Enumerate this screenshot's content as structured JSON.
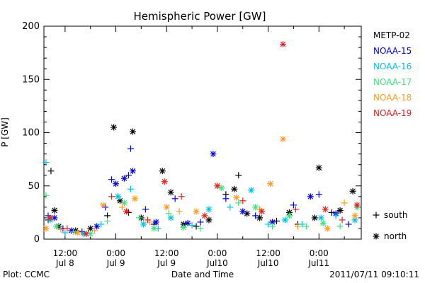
{
  "chart_data": {
    "type": "scatter",
    "title": "Hemispheric Power [GW]",
    "xlabel": "Date and Time",
    "ylabel": "P [GW]",
    "ylim": [
      0,
      200
    ],
    "yticks": [
      0,
      50,
      100,
      150,
      200
    ],
    "xlim": [
      "2011-07-08T07:00",
      "2011-07-11T10:00"
    ],
    "xticks": [
      {
        "t": "2011-07-08T12:00",
        "top": "12:00",
        "bottom": "Jul 8"
      },
      {
        "t": "2011-07-09T00:00",
        "top": "0:00",
        "bottom": "Jul 9"
      },
      {
        "t": "2011-07-09T12:00",
        "top": "12:00",
        "bottom": "Jul 9"
      },
      {
        "t": "2011-07-10T00:00",
        "top": "0:00",
        "bottom": "Jul10"
      },
      {
        "t": "2011-07-10T12:00",
        "top": "12:00",
        "bottom": "Jul10"
      },
      {
        "t": "2011-07-11T00:00",
        "top": "0:00",
        "bottom": "Jul11"
      }
    ],
    "grid": false,
    "legend_position": "right",
    "marker_legend": [
      {
        "symbol": "+",
        "label": "south"
      },
      {
        "symbol": "*",
        "label": "north"
      }
    ],
    "series": [
      {
        "name": "METP-02",
        "color": "#000000",
        "points": [
          {
            "t": "2011-07-08T08:00",
            "y": 18,
            "m": "+"
          },
          {
            "t": "2011-07-08T08:40",
            "y": 64,
            "m": "+"
          },
          {
            "t": "2011-07-08T09:30",
            "y": 27,
            "m": "*"
          },
          {
            "t": "2011-07-08T10:30",
            "y": 12,
            "m": "*"
          },
          {
            "t": "2011-07-08T14:30",
            "y": 8,
            "m": "*"
          },
          {
            "t": "2011-07-08T18:00",
            "y": 10,
            "m": "*"
          },
          {
            "t": "2011-07-08T22:00",
            "y": 22,
            "m": "+"
          },
          {
            "t": "2011-07-08T23:30",
            "y": 105,
            "m": "*"
          },
          {
            "t": "2011-07-09T01:00",
            "y": 36,
            "m": "*"
          },
          {
            "t": "2011-07-09T03:00",
            "y": 25,
            "m": "+"
          },
          {
            "t": "2011-07-09T04:00",
            "y": 101,
            "m": "*"
          },
          {
            "t": "2011-07-09T06:00",
            "y": 20,
            "m": "*"
          },
          {
            "t": "2011-07-09T09:00",
            "y": 14,
            "m": "+"
          },
          {
            "t": "2011-07-09T11:00",
            "y": 64,
            "m": "*"
          },
          {
            "t": "2011-07-09T13:00",
            "y": 44,
            "m": "*"
          },
          {
            "t": "2011-07-09T16:00",
            "y": 14,
            "m": "*"
          },
          {
            "t": "2011-07-09T19:00",
            "y": 12,
            "m": "+"
          },
          {
            "t": "2011-07-09T22:00",
            "y": 18,
            "m": "*"
          },
          {
            "t": "2011-07-10T02:00",
            "y": 42,
            "m": "+"
          },
          {
            "t": "2011-07-10T04:00",
            "y": 47,
            "m": "*"
          },
          {
            "t": "2011-07-10T05:00",
            "y": 60,
            "m": "+"
          },
          {
            "t": "2011-07-10T07:00",
            "y": 24,
            "m": "*"
          },
          {
            "t": "2011-07-10T10:00",
            "y": 20,
            "m": "*"
          },
          {
            "t": "2011-07-10T14:00",
            "y": 17,
            "m": "+"
          },
          {
            "t": "2011-07-10T17:00",
            "y": 25,
            "m": "*"
          },
          {
            "t": "2011-07-10T19:00",
            "y": 14,
            "m": "+"
          },
          {
            "t": "2011-07-10T23:00",
            "y": 20,
            "m": "*"
          },
          {
            "t": "2011-07-11T00:00",
            "y": 67,
            "m": "*"
          },
          {
            "t": "2011-07-11T03:00",
            "y": 25,
            "m": "+"
          },
          {
            "t": "2011-07-11T05:00",
            "y": 27,
            "m": "*"
          },
          {
            "t": "2011-07-11T08:00",
            "y": 45,
            "m": "*"
          }
        ]
      },
      {
        "name": "NOAA-15",
        "color": "#0000e0",
        "points": [
          {
            "t": "2011-07-08T08:00",
            "y": 22,
            "m": "+"
          },
          {
            "t": "2011-07-08T09:30",
            "y": 20,
            "m": "*"
          },
          {
            "t": "2011-07-08T11:30",
            "y": 10,
            "m": "+"
          },
          {
            "t": "2011-07-08T13:30",
            "y": 8,
            "m": "*"
          },
          {
            "t": "2011-07-08T16:00",
            "y": 7,
            "m": "+"
          },
          {
            "t": "2011-07-08T19:30",
            "y": 12,
            "m": "*"
          },
          {
            "t": "2011-07-08T21:30",
            "y": 30,
            "m": "+"
          },
          {
            "t": "2011-07-08T23:00",
            "y": 56,
            "m": "+"
          },
          {
            "t": "2011-07-09T00:00",
            "y": 52,
            "m": "*"
          },
          {
            "t": "2011-07-09T02:00",
            "y": 57,
            "m": "*"
          },
          {
            "t": "2011-07-09T03:00",
            "y": 60,
            "m": "+"
          },
          {
            "t": "2011-07-09T03:30",
            "y": 85,
            "m": "+"
          },
          {
            "t": "2011-07-09T04:00",
            "y": 64,
            "m": "*"
          },
          {
            "t": "2011-07-09T07:00",
            "y": 28,
            "m": "+"
          },
          {
            "t": "2011-07-09T09:30",
            "y": 16,
            "m": "*"
          },
          {
            "t": "2011-07-09T14:00",
            "y": 38,
            "m": "+"
          },
          {
            "t": "2011-07-09T17:00",
            "y": 15,
            "m": "*"
          },
          {
            "t": "2011-07-09T20:00",
            "y": 16,
            "m": "+"
          },
          {
            "t": "2011-07-09T23:00",
            "y": 80,
            "m": "*"
          },
          {
            "t": "2011-07-10T02:00",
            "y": 38,
            "m": "+"
          },
          {
            "t": "2011-07-10T06:00",
            "y": 26,
            "m": "*"
          },
          {
            "t": "2011-07-10T09:00",
            "y": 22,
            "m": "+"
          },
          {
            "t": "2011-07-10T13:00",
            "y": 16,
            "m": "*"
          },
          {
            "t": "2011-07-10T18:00",
            "y": 32,
            "m": "+"
          },
          {
            "t": "2011-07-10T22:00",
            "y": 40,
            "m": "*"
          },
          {
            "t": "2011-07-11T00:00",
            "y": 42,
            "m": "+"
          },
          {
            "t": "2011-07-11T04:00",
            "y": 24,
            "m": "*"
          },
          {
            "t": "2011-07-11T07:00",
            "y": 14,
            "m": "+"
          }
        ]
      },
      {
        "name": "NOAA-16",
        "color": "#00c0e0",
        "points": [
          {
            "t": "2011-07-08T07:30",
            "y": 72,
            "m": "+"
          },
          {
            "t": "2011-07-08T08:30",
            "y": 18,
            "m": "*"
          },
          {
            "t": "2011-07-08T12:00",
            "y": 6,
            "m": "+"
          },
          {
            "t": "2011-07-08T16:30",
            "y": 5,
            "m": "*"
          },
          {
            "t": "2011-07-08T20:30",
            "y": 14,
            "m": "+"
          },
          {
            "t": "2011-07-09T00:30",
            "y": 40,
            "m": "*"
          },
          {
            "t": "2011-07-09T03:30",
            "y": 47,
            "m": "+"
          },
          {
            "t": "2011-07-09T06:30",
            "y": 14,
            "m": "*"
          },
          {
            "t": "2011-07-09T10:00",
            "y": 10,
            "m": "+"
          },
          {
            "t": "2011-07-09T13:00",
            "y": 20,
            "m": "*"
          },
          {
            "t": "2011-07-09T18:00",
            "y": 13,
            "m": "+"
          },
          {
            "t": "2011-07-09T22:00",
            "y": 28,
            "m": "*"
          },
          {
            "t": "2011-07-10T03:00",
            "y": 30,
            "m": "+"
          },
          {
            "t": "2011-07-10T08:00",
            "y": 46,
            "m": "*"
          },
          {
            "t": "2011-07-10T12:00",
            "y": 14,
            "m": "+"
          },
          {
            "t": "2011-07-10T16:00",
            "y": 18,
            "m": "*"
          },
          {
            "t": "2011-07-10T20:00",
            "y": 14,
            "m": "+"
          },
          {
            "t": "2011-07-11T00:30",
            "y": 20,
            "m": "*"
          },
          {
            "t": "2011-07-11T04:00",
            "y": 22,
            "m": "+"
          },
          {
            "t": "2011-07-11T08:30",
            "y": 18,
            "m": "*"
          }
        ]
      },
      {
        "name": "NOAA-17",
        "color": "#40e080",
        "points": [
          {
            "t": "2011-07-08T07:30",
            "y": 41,
            "m": "+"
          },
          {
            "t": "2011-07-08T10:00",
            "y": 12,
            "m": "*"
          },
          {
            "t": "2011-07-08T14:00",
            "y": 7,
            "m": "+"
          },
          {
            "t": "2011-07-08T18:00",
            "y": 5,
            "m": "*"
          },
          {
            "t": "2011-07-08T22:00",
            "y": 17,
            "m": "+"
          },
          {
            "t": "2011-07-09T02:00",
            "y": 34,
            "m": "*"
          },
          {
            "t": "2011-07-09T05:30",
            "y": 20,
            "m": "+"
          },
          {
            "t": "2011-07-09T09:00",
            "y": 10,
            "m": "*"
          },
          {
            "t": "2011-07-09T12:30",
            "y": 24,
            "m": "+"
          },
          {
            "t": "2011-07-09T16:00",
            "y": 11,
            "m": "*"
          },
          {
            "t": "2011-07-09T20:00",
            "y": 10,
            "m": "+"
          },
          {
            "t": "2011-07-10T01:00",
            "y": 48,
            "m": "*"
          },
          {
            "t": "2011-07-10T05:00",
            "y": 34,
            "m": "+"
          },
          {
            "t": "2011-07-10T09:00",
            "y": 30,
            "m": "*"
          },
          {
            "t": "2011-07-10T13:00",
            "y": 12,
            "m": "+"
          },
          {
            "t": "2011-07-10T17:00",
            "y": 22,
            "m": "*"
          },
          {
            "t": "2011-07-10T21:00",
            "y": 12,
            "m": "+"
          },
          {
            "t": "2011-07-11T01:00",
            "y": 15,
            "m": "*"
          },
          {
            "t": "2011-07-11T05:00",
            "y": 12,
            "m": "+"
          },
          {
            "t": "2011-07-11T09:00",
            "y": 30,
            "m": "*"
          }
        ]
      },
      {
        "name": "NOAA-18",
        "color": "#ff9a20",
        "points": [
          {
            "t": "2011-07-08T07:30",
            "y": 10,
            "m": "*"
          },
          {
            "t": "2011-07-08T11:00",
            "y": 9,
            "m": "+"
          },
          {
            "t": "2011-07-08T15:00",
            "y": 6,
            "m": "*"
          },
          {
            "t": "2011-07-08T19:00",
            "y": 8,
            "m": "+"
          },
          {
            "t": "2011-07-08T21:00",
            "y": 32,
            "m": "*"
          },
          {
            "t": "2011-07-09T01:30",
            "y": 30,
            "m": "+"
          },
          {
            "t": "2011-07-09T04:30",
            "y": 38,
            "m": "*"
          },
          {
            "t": "2011-07-09T08:00",
            "y": 16,
            "m": "+"
          },
          {
            "t": "2011-07-09T12:00",
            "y": 30,
            "m": "*"
          },
          {
            "t": "2011-07-09T15:00",
            "y": 26,
            "m": "+"
          },
          {
            "t": "2011-07-09T19:00",
            "y": 26,
            "m": "*"
          },
          {
            "t": "2011-07-10T00:00",
            "y": 50,
            "m": "+"
          },
          {
            "t": "2011-07-10T04:30",
            "y": 39,
            "m": "*"
          },
          {
            "t": "2011-07-10T10:00",
            "y": 28,
            "m": "+"
          },
          {
            "t": "2011-07-10T12:30",
            "y": 52,
            "m": "*"
          },
          {
            "t": "2011-07-10T15:30",
            "y": 94,
            "m": "*"
          },
          {
            "t": "2011-07-10T19:00",
            "y": 12,
            "m": "+"
          },
          {
            "t": "2011-07-11T02:00",
            "y": 10,
            "m": "*"
          },
          {
            "t": "2011-07-11T06:00",
            "y": 34,
            "m": "+"
          },
          {
            "t": "2011-07-11T08:30",
            "y": 22,
            "m": "*"
          }
        ]
      },
      {
        "name": "NOAA-19",
        "color": "#e02020",
        "points": [
          {
            "t": "2011-07-08T08:30",
            "y": 20,
            "m": "*"
          },
          {
            "t": "2011-07-08T12:30",
            "y": 10,
            "m": "+"
          },
          {
            "t": "2011-07-08T17:00",
            "y": 5,
            "m": "*"
          },
          {
            "t": "2011-07-08T23:00",
            "y": 40,
            "m": "+"
          },
          {
            "t": "2011-07-09T02:30",
            "y": 26,
            "m": "*"
          },
          {
            "t": "2011-07-09T07:30",
            "y": 18,
            "m": "+"
          },
          {
            "t": "2011-07-09T11:30",
            "y": 54,
            "m": "*"
          },
          {
            "t": "2011-07-09T15:30",
            "y": 40,
            "m": "+"
          },
          {
            "t": "2011-07-09T21:00",
            "y": 22,
            "m": "*"
          },
          {
            "t": "2011-07-10T00:00",
            "y": 50,
            "m": "*"
          },
          {
            "t": "2011-07-10T06:00",
            "y": 36,
            "m": "+"
          },
          {
            "t": "2011-07-10T10:30",
            "y": 26,
            "m": "*"
          },
          {
            "t": "2011-07-10T15:30",
            "y": 183,
            "m": "*"
          },
          {
            "t": "2011-07-10T18:30",
            "y": 28,
            "m": "+"
          },
          {
            "t": "2011-07-11T01:30",
            "y": 28,
            "m": "*"
          },
          {
            "t": "2011-07-11T05:30",
            "y": 18,
            "m": "+"
          },
          {
            "t": "2011-07-11T09:00",
            "y": 32,
            "m": "*"
          }
        ]
      }
    ]
  },
  "footer": {
    "left": "Plot: CCMC",
    "right": "2011/07/11 09:10:11"
  }
}
